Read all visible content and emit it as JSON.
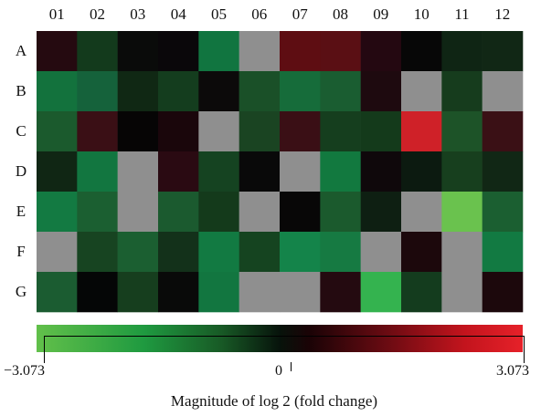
{
  "chart_data": {
    "type": "heatmap",
    "columns": [
      "01",
      "02",
      "03",
      "04",
      "05",
      "06",
      "07",
      "08",
      "09",
      "10",
      "11",
      "12"
    ],
    "rows": [
      "A",
      "B",
      "C",
      "D",
      "E",
      "F",
      "G"
    ],
    "missing_color": "#8f8f8f",
    "cell_colors": [
      [
        "#250a10",
        "#133a1c",
        "#0a0b0a",
        "#0a070a",
        "#117540",
        "#8f8f8f",
        "#5e0d12",
        "#5a0f14",
        "#240811",
        "#070707",
        "#0f2514",
        "#112715"
      ],
      [
        "#13723d",
        "#15623b",
        "#102814",
        "#143d1e",
        "#0c0a0a",
        "#1a5028",
        "#166c3a",
        "#1a5d31",
        "#1e0a0f",
        "#8f8f8f",
        "#163c1d",
        "#8f8f8f"
      ],
      [
        "#1b5a2d",
        "#3a0f15",
        "#060505",
        "#1a060b",
        "#8f8f8f",
        "#1a4422",
        "#3a0f15",
        "#153e1e",
        "#143a1b",
        "#cf2128",
        "#1d5328",
        "#3a1015"
      ],
      [
        "#102614",
        "#127640",
        "#8f8f8f",
        "#2a0a12",
        "#154321",
        "#090909",
        "#8f8f8f",
        "#12793f",
        "#0f080b",
        "#0c1a10",
        "#173f1e",
        "#112715"
      ],
      [
        "#137a42",
        "#1b5f31",
        "#8f8f8f",
        "#1b5a2f",
        "#143a1b",
        "#8f8f8f",
        "#080707",
        "#1b5a2d",
        "#0e1f12",
        "#8f8f8f",
        "#6ac24e",
        "#1b5f31"
      ],
      [
        "#8f8f8f",
        "#174421",
        "#1b5f31",
        "#13311a",
        "#127a42",
        "#154420",
        "#14844a",
        "#167a42",
        "#8f8f8f",
        "#1c080c",
        "#8f8f8f",
        "#127a42"
      ],
      [
        "#1b5c31",
        "#050606",
        "#163e1e",
        "#090a09",
        "#127640",
        "#8f8f8f",
        "#8f8f8f",
        "#240a10",
        "#34b34f",
        "#143c1e",
        "#8f8f8f",
        "#1c080c"
      ]
    ],
    "colorbar": {
      "min": -3.073,
      "max": 3.073,
      "ticks": [
        "−3.073",
        "0",
        "3.073"
      ],
      "tick_values": [
        -3.073,
        0,
        3.073
      ],
      "low_color": "#62c04a",
      "mid_color": "#000000",
      "high_color": "#e62129"
    },
    "xlabel": "Magnitude of log 2 (fold change)"
  }
}
